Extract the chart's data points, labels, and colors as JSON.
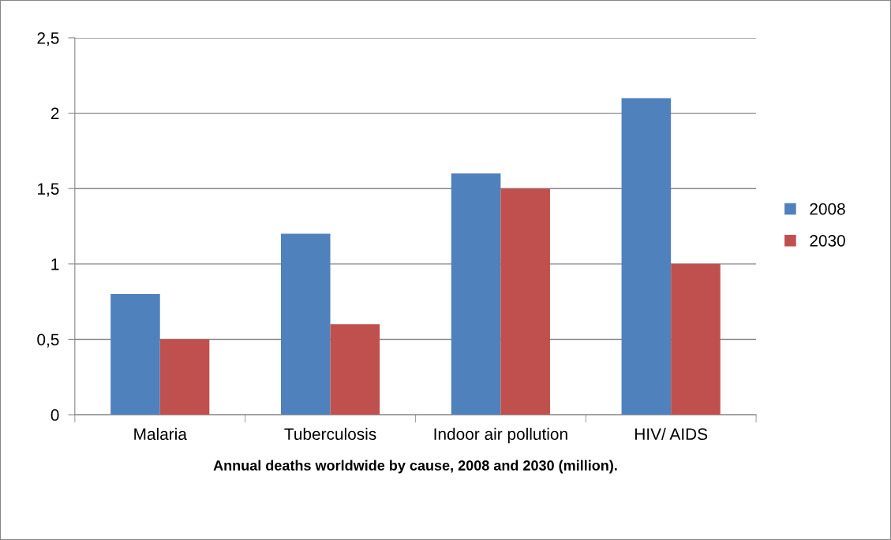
{
  "chart_data": {
    "type": "bar",
    "title": "Annual deaths worldwide by cause, 2008 and 2030 (million).",
    "categories": [
      "Malaria",
      "Tuberculosis",
      "Indoor air pollution",
      "HIV/ AIDS"
    ],
    "series": [
      {
        "name": "2008",
        "color": "#4f81bd",
        "values": [
          0.8,
          1.2,
          1.6,
          2.1
        ]
      },
      {
        "name": "2030",
        "color": "#c0504d",
        "values": [
          0.5,
          0.6,
          1.5,
          1.0
        ]
      }
    ],
    "ylim": [
      0,
      2.5
    ],
    "yticks": [
      0,
      {
        "value": 0.5,
        "label": "0,5"
      },
      1,
      {
        "value": 1.5,
        "label": "1,5"
      },
      2,
      {
        "value": 2.5,
        "label": "2,5"
      }
    ],
    "grid": "y",
    "legend": "right"
  }
}
